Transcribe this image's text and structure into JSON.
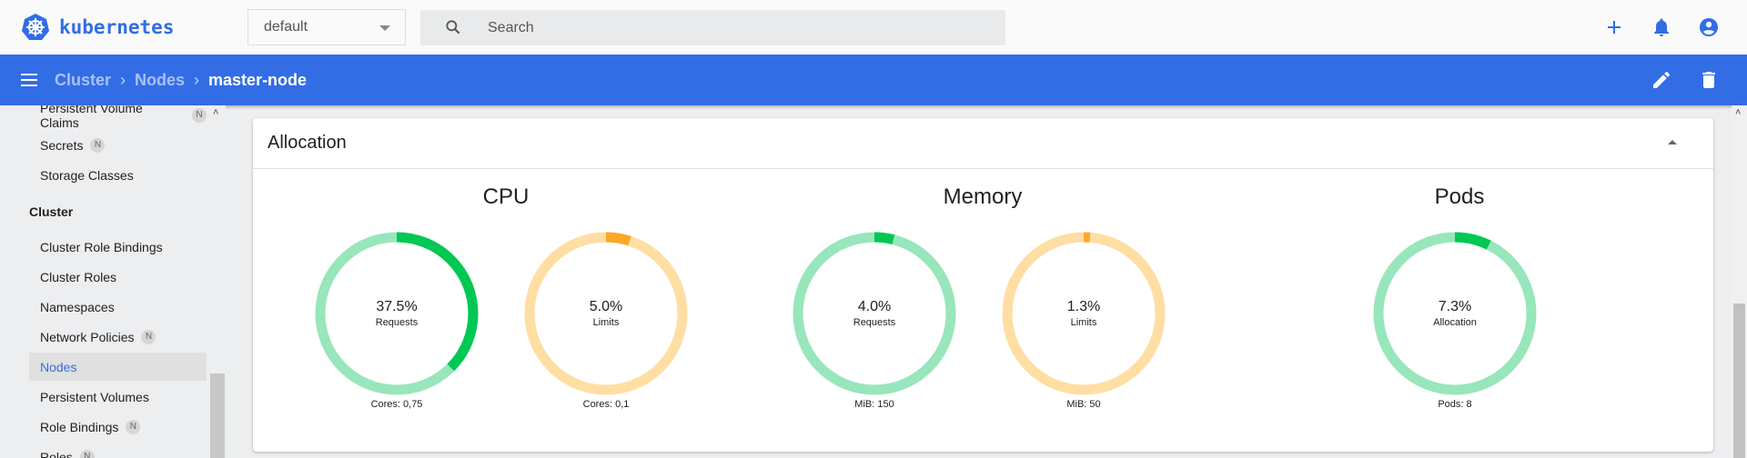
{
  "header": {
    "logo_text": "kubernetes",
    "namespace": "default",
    "search_placeholder": "Search",
    "icons": [
      "plus-icon",
      "bell-icon",
      "account-circle-icon"
    ]
  },
  "toolbar": {
    "breadcrumbs": [
      "Cluster",
      "Nodes",
      "master-node"
    ],
    "icons": [
      "pencil-icon",
      "trash-icon"
    ]
  },
  "sidebar": {
    "items_top": [
      {
        "label": "Persistent Volume Claims",
        "badge": "N"
      },
      {
        "label": "Secrets",
        "badge": "N"
      },
      {
        "label": "Storage Classes",
        "badge": ""
      }
    ],
    "section": "Cluster",
    "items": [
      {
        "label": "Cluster Role Bindings",
        "badge": ""
      },
      {
        "label": "Cluster Roles",
        "badge": ""
      },
      {
        "label": "Namespaces",
        "badge": ""
      },
      {
        "label": "Network Policies",
        "badge": "N"
      },
      {
        "label": "Nodes",
        "badge": "",
        "active": true
      },
      {
        "label": "Persistent Volumes",
        "badge": ""
      },
      {
        "label": "Role Bindings",
        "badge": "N"
      },
      {
        "label": "Roles",
        "badge": "N"
      }
    ]
  },
  "allocation": {
    "title": "Allocation",
    "colors": {
      "green": "#00c853",
      "green_track": "#98e6bb",
      "orange": "#ffa726",
      "orange_track": "#ffdea3"
    },
    "groups": [
      {
        "title": "CPU",
        "gauges": [
          {
            "value": "37.5%",
            "percent": 37.5,
            "label": "Requests",
            "footer": "Cores: 0,75",
            "color": "green"
          },
          {
            "value": "5.0%",
            "percent": 5.0,
            "label": "Limits",
            "footer": "Cores: 0,1",
            "color": "orange"
          }
        ]
      },
      {
        "title": "Memory",
        "gauges": [
          {
            "value": "4.0%",
            "percent": 4.0,
            "label": "Requests",
            "footer": "MiB: 150",
            "color": "green"
          },
          {
            "value": "1.3%",
            "percent": 1.3,
            "label": "Limits",
            "footer": "MiB: 50",
            "color": "orange"
          }
        ]
      },
      {
        "title": "Pods",
        "gauges": [
          {
            "value": "7.3%",
            "percent": 7.3,
            "label": "Allocation",
            "footer": "Pods: 8",
            "color": "green"
          }
        ]
      }
    ]
  }
}
